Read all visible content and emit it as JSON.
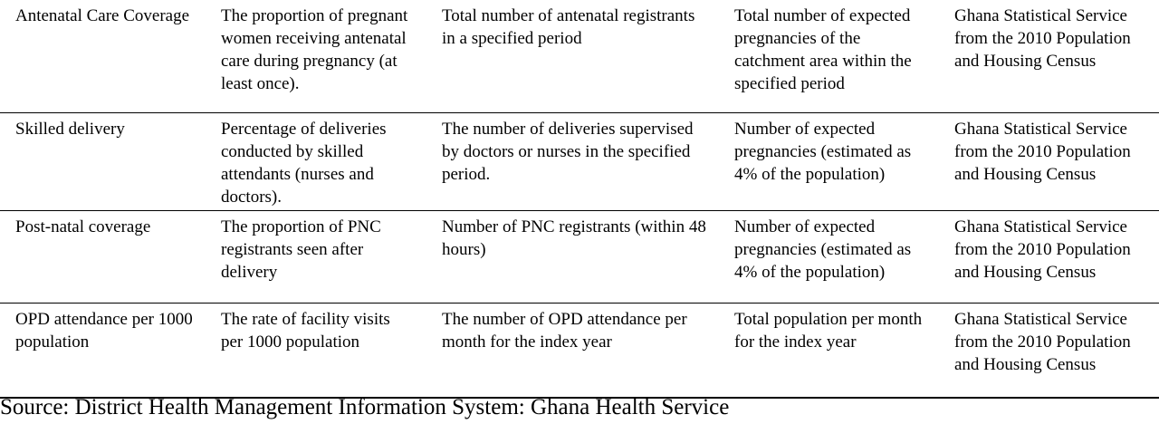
{
  "rows": [
    {
      "indicator": "Antenatal Care Coverage",
      "definition": "The proportion of pregnant women receiving antenatal care during pregnancy (at least once).",
      "numerator": "Total number of antenatal registrants in a specified period",
      "denominator": "Total number of expected pregnancies of the catchment area within the specified period",
      "source": "Ghana Statistical Service from the 2010 Population and Housing Census"
    },
    {
      "indicator": "Skilled delivery",
      "definition": "Percentage of deliveries conducted by skilled attendants (nurses and doctors).",
      "numerator": "The number of deliveries supervised by doctors or nurses in the specified period.",
      "denominator": "Number of expected pregnancies (estimated as 4% of the population)",
      "source": "Ghana Statistical Service from the 2010 Population and Housing Census"
    },
    {
      "indicator": "Post-natal coverage",
      "definition": "The proportion of PNC registrants seen after delivery",
      "numerator": "Number of PNC registrants (within 48 hours)",
      "denominator": "Number of expected pregnancies (estimated as 4% of the population)",
      "source": "Ghana Statistical Service from the 2010 Population and Housing Census"
    },
    {
      "indicator": "OPD attendance per 1000 population",
      "definition": "The rate of facility visits per 1000 population",
      "numerator": "The number of OPD attendance per month for the index year",
      "denominator": "Total population per month for the index year",
      "source": "Ghana Statistical Service from the 2010 Population and Housing Census"
    }
  ],
  "footer": {
    "source_note": "Source: District Health Management Information System: Ghana Health Service"
  }
}
